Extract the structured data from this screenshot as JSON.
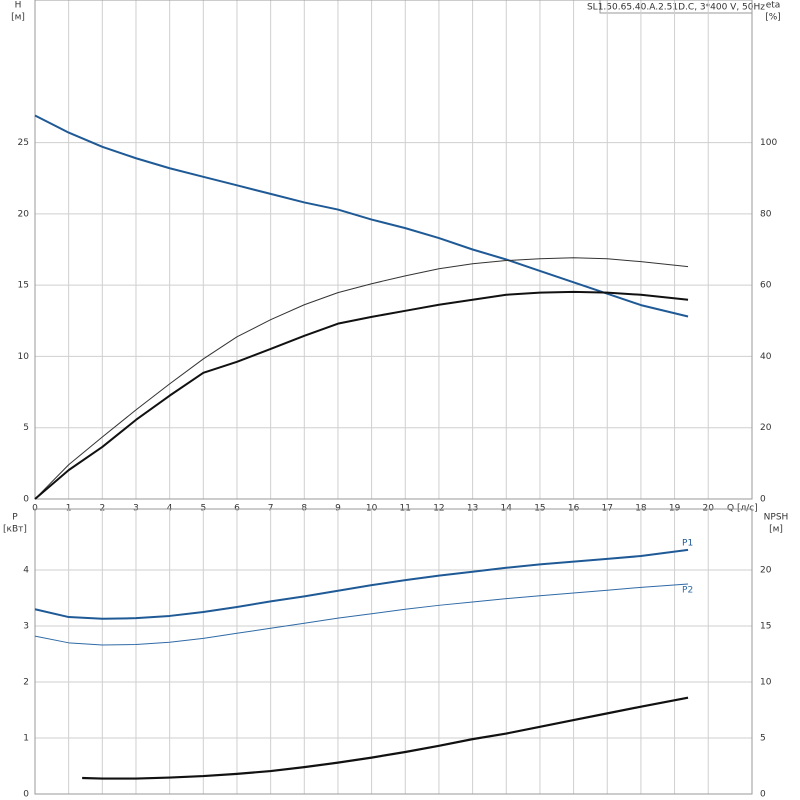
{
  "chart_data": [
    {
      "type": "line",
      "title": "SL1.50.65.40.A.2.51D.C, 3*400 V, 50Hz",
      "ylabel": "H",
      "yunit": "[м]",
      "y2label": "eta",
      "y2unit": "[%]",
      "xlabel": "Q [л/с]",
      "xlim": [
        0,
        21.3
      ],
      "xticks": [
        0,
        1,
        2,
        3,
        4,
        5,
        6,
        7,
        8,
        9,
        10,
        11,
        12,
        13,
        14,
        15,
        16,
        17,
        18,
        19,
        20
      ],
      "ylim": [
        0,
        35
      ],
      "yticks": [
        0,
        5,
        10,
        15,
        20,
        25
      ],
      "y2lim": [
        0,
        140
      ],
      "y2ticks": [
        0,
        20,
        40,
        60,
        80,
        100
      ],
      "grid": true,
      "series": [
        {
          "color": "#1f5a96",
          "x": [
            0,
            1,
            2,
            3,
            4,
            5,
            6,
            7,
            8,
            9,
            10,
            11,
            12,
            13,
            14,
            15,
            16,
            17,
            18,
            19.4
          ],
          "values": [
            26.9,
            25.7,
            24.7,
            23.9,
            23.2,
            22.6,
            22.0,
            21.4,
            20.8,
            20.3,
            19.6,
            19.0,
            18.3,
            17.5,
            16.8,
            16.0,
            15.2,
            14.4,
            13.6,
            12.8
          ]
        },
        {
          "color": "#333333",
          "axis": "y2",
          "x": [
            0,
            1,
            2,
            3,
            4,
            5,
            6,
            7,
            8,
            9,
            10,
            11,
            12,
            13,
            14,
            15,
            16,
            17,
            18,
            19.4
          ],
          "values": [
            0,
            9.6,
            17.4,
            25,
            32.3,
            39.3,
            45.5,
            50.3,
            54.5,
            57.9,
            60.4,
            62.6,
            64.6,
            66,
            66.9,
            67.4,
            67.7,
            67.4,
            66.6,
            65.2
          ]
        },
        {
          "color": "#111111",
          "axis": "y2",
          "x": [
            0,
            1,
            2,
            3,
            4,
            5,
            6,
            7,
            8,
            9,
            10,
            11,
            12,
            13,
            14,
            15,
            16,
            17,
            18,
            19.4
          ],
          "values": [
            0,
            8.1,
            14.6,
            22.2,
            29,
            35.4,
            38.5,
            42.1,
            45.8,
            49.2,
            51.1,
            52.8,
            54.5,
            55.9,
            57.3,
            57.9,
            58.1,
            57.9,
            57.3,
            55.9
          ]
        }
      ]
    },
    {
      "type": "line",
      "ylabel": "P",
      "yunit": "[кВт]",
      "y2label": "NPSH",
      "y2unit": "[м]",
      "ylim": [
        0,
        5.09
      ],
      "yticks": [
        0,
        1,
        2,
        3,
        4
      ],
      "y2lim": [
        0,
        25.45
      ],
      "y2ticks": [
        0,
        5,
        10,
        15,
        20
      ],
      "grid": true,
      "series": [
        {
          "name": "P1",
          "color": "#1f5a96",
          "x": [
            0,
            1,
            2,
            3,
            4,
            5,
            6,
            7,
            8,
            9,
            10,
            11,
            12,
            13,
            14,
            15,
            16,
            17,
            18,
            19.4
          ],
          "values": [
            3.3,
            3.16,
            3.13,
            3.14,
            3.18,
            3.25,
            3.34,
            3.44,
            3.53,
            3.63,
            3.73,
            3.82,
            3.9,
            3.97,
            4.04,
            4.1,
            4.15,
            4.2,
            4.25,
            4.36
          ]
        },
        {
          "name": "P2",
          "color": "#2f6aa6",
          "x": [
            0,
            1,
            2,
            3,
            4,
            5,
            6,
            7,
            8,
            9,
            10,
            11,
            12,
            13,
            14,
            15,
            16,
            17,
            18,
            19.4
          ],
          "values": [
            2.82,
            2.7,
            2.66,
            2.67,
            2.71,
            2.78,
            2.87,
            2.96,
            3.05,
            3.14,
            3.22,
            3.3,
            3.37,
            3.43,
            3.49,
            3.54,
            3.59,
            3.64,
            3.69,
            3.75
          ]
        },
        {
          "color": "#111111",
          "axis": "y2",
          "x": [
            1.4,
            2,
            3,
            4,
            5,
            6,
            7,
            8,
            9,
            10,
            11,
            12,
            13,
            14,
            15,
            16,
            17,
            18,
            19.4
          ],
          "values": [
            1.43,
            1.38,
            1.38,
            1.47,
            1.6,
            1.8,
            2.05,
            2.4,
            2.8,
            3.25,
            3.75,
            4.3,
            4.9,
            5.4,
            6.0,
            6.6,
            7.2,
            7.8,
            8.6
          ]
        }
      ]
    }
  ]
}
